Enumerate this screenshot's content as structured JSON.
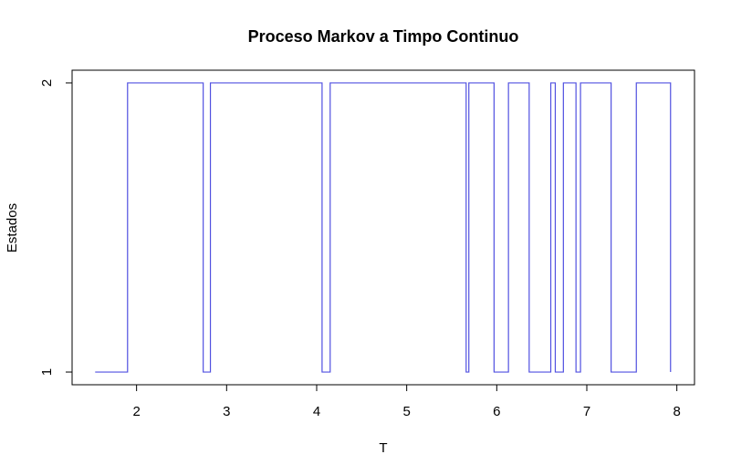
{
  "chart_data": {
    "type": "line",
    "step": true,
    "title": "Proceso Markov a Timpo Continuo",
    "xlabel": "T",
    "ylabel": "Estados",
    "x": [
      1.54,
      1.9,
      2.74,
      2.82,
      4.06,
      4.15,
      5.66,
      5.69,
      5.97,
      6.13,
      6.36,
      6.6,
      6.65,
      6.74,
      6.88,
      6.93,
      7.27,
      7.55,
      7.93
    ],
    "series": [
      {
        "color": "#5050e0",
        "values": [
          1,
          2,
          1,
          2,
          1,
          2,
          1,
          2,
          1,
          2,
          1,
          2,
          1,
          2,
          1,
          2,
          1,
          2,
          1
        ]
      }
    ],
    "xlim": [
      1.284,
      8.196
    ],
    "xticks": [
      2,
      3,
      4,
      5,
      6,
      7,
      8
    ],
    "ylim": [
      0.956,
      2.044
    ],
    "yticks": [
      1,
      2
    ]
  }
}
